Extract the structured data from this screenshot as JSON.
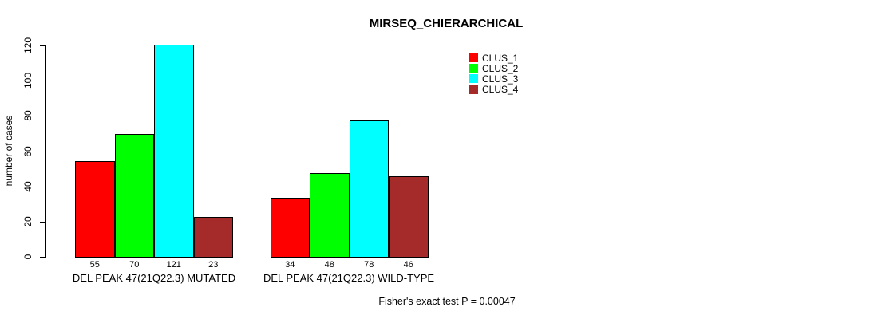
{
  "chart_data": {
    "type": "bar",
    "title": "MIRSEQ_CHIERARCHICAL",
    "ylabel": "number of cases",
    "ylim": [
      0,
      120
    ],
    "yticks": [
      0,
      20,
      40,
      60,
      80,
      100,
      120
    ],
    "grid": false,
    "legend_position": "top-right",
    "legend": [
      {
        "label": "CLUS_1",
        "color": "#ff0000"
      },
      {
        "label": "CLUS_2",
        "color": "#00ff00"
      },
      {
        "label": "CLUS_3",
        "color": "#00ffff"
      },
      {
        "label": "CLUS_4",
        "color": "#a52a2a"
      }
    ],
    "series": [
      {
        "name": "CLUS_1",
        "color": "#ff0000",
        "values": [
          55,
          34
        ]
      },
      {
        "name": "CLUS_2",
        "color": "#00ff00",
        "values": [
          70,
          48
        ]
      },
      {
        "name": "CLUS_3",
        "color": "#00ffff",
        "values": [
          121,
          78
        ]
      },
      {
        "name": "CLUS_4",
        "color": "#a52a2a",
        "values": [
          23,
          46
        ]
      }
    ],
    "groups": [
      {
        "label": "DEL PEAK 47(21Q22.3) MUTATED",
        "values": [
          55,
          70,
          121,
          23
        ]
      },
      {
        "label": "DEL PEAK 47(21Q22.3) WILD-TYPE",
        "values": [
          34,
          48,
          78,
          46
        ]
      }
    ],
    "annotation": "Fisher's exact test P = 0.00047"
  }
}
